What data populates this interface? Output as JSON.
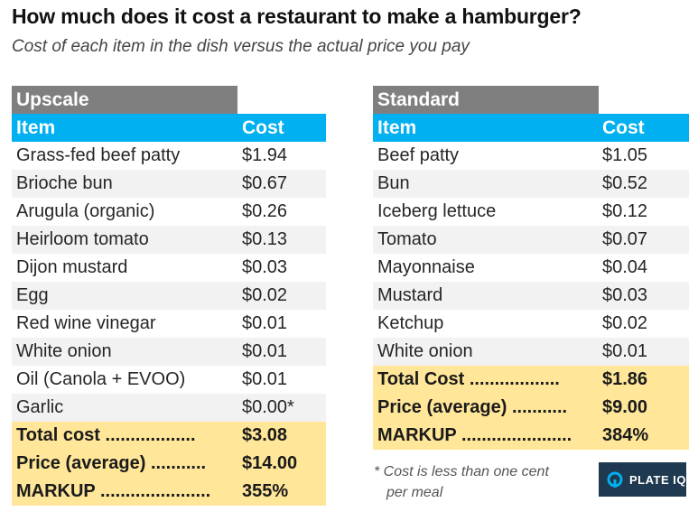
{
  "title": "How much does it cost a restaurant to make a hamburger?",
  "subtitle": "Cost of each item in the dish versus the actual price you pay",
  "upscale": {
    "section": "Upscale",
    "col_item": "Item",
    "col_cost": "Cost",
    "rows": [
      {
        "item": "Grass-fed beef patty",
        "cost": "$1.94"
      },
      {
        "item": "Brioche bun",
        "cost": "$0.67"
      },
      {
        "item": "Arugula (organic)",
        "cost": "$0.26"
      },
      {
        "item": "Heirloom tomato",
        "cost": "$0.13"
      },
      {
        "item": "Dijon mustard",
        "cost": "$0.03"
      },
      {
        "item": "Egg",
        "cost": "$0.02"
      },
      {
        "item": "Red wine vinegar",
        "cost": "$0.01"
      },
      {
        "item": "White onion",
        "cost": "$0.01"
      },
      {
        "item": "Oil (Canola + EVOO)",
        "cost": "$0.01"
      },
      {
        "item": "Garlic",
        "cost": "$0.00*"
      }
    ],
    "totals": [
      {
        "item": "Total cost ..................",
        "cost": "$3.08"
      },
      {
        "item": "Price (average) ...........",
        "cost": "$14.00"
      },
      {
        "item": "MARKUP ......................",
        "cost": "355%"
      }
    ]
  },
  "standard": {
    "section": "Standard",
    "col_item": "Item",
    "col_cost": "Cost",
    "rows": [
      {
        "item": "Beef patty",
        "cost": "$1.05"
      },
      {
        "item": "Bun",
        "cost": "$0.52"
      },
      {
        "item": "Iceberg lettuce",
        "cost": "$0.12"
      },
      {
        "item": "Tomato",
        "cost": "$0.07"
      },
      {
        "item": "Mayonnaise",
        "cost": "$0.04"
      },
      {
        "item": "Mustard",
        "cost": "$0.03"
      },
      {
        "item": "Ketchup",
        "cost": "$0.02"
      },
      {
        "item": "White onion",
        "cost": "$0.01"
      }
    ],
    "totals": [
      {
        "item": "Total Cost ..................",
        "cost": "$1.86"
      },
      {
        "item": "Price (average) ...........",
        "cost": "$9.00"
      },
      {
        "item": "MARKUP ......................",
        "cost": "384%"
      }
    ]
  },
  "footnote": {
    "line1": "* Cost is less than one cent",
    "line2": "per meal"
  },
  "logo": {
    "text": "PLATE IQ",
    "icon": "plateiq-logo-icon",
    "bg_color": "#1f3a50"
  },
  "colors": {
    "section_header": "#7f7f7f",
    "column_header": "#00b0f0",
    "alt_row": "#f2f2f2",
    "totals": "#ffe699"
  }
}
